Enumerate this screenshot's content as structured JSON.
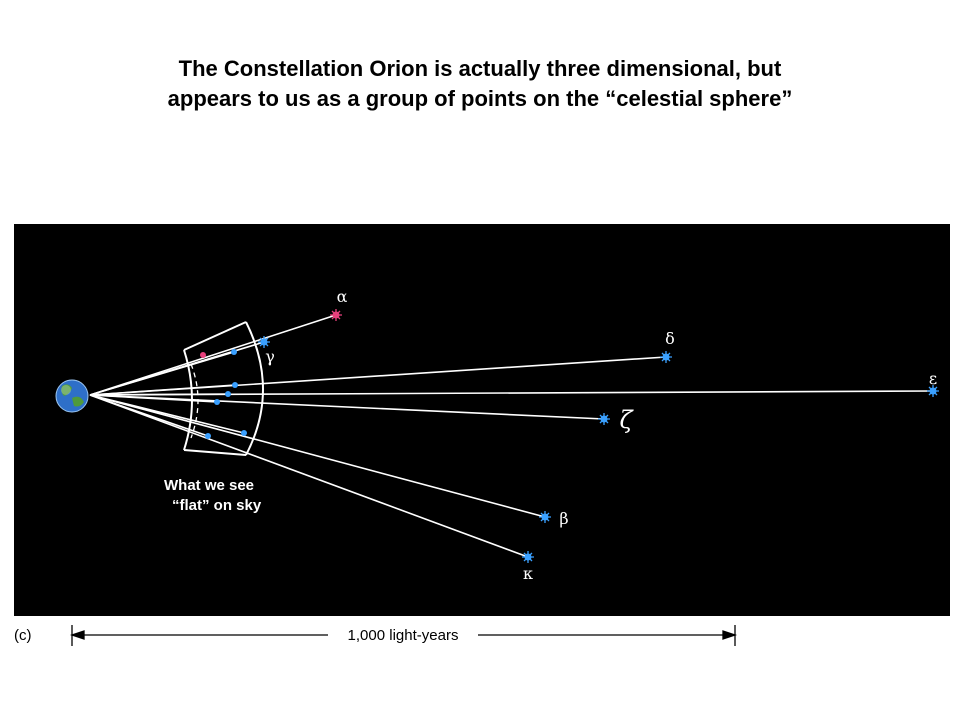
{
  "title": {
    "line1": "The Constellation Orion is actually three dimensional, but",
    "line2": "appears to us as a group of points on the “celestial sphere”"
  },
  "diagram": {
    "caption_line1": "What we see",
    "caption_line2": "“flat” on sky",
    "panel_label": "(c)",
    "scale_label": "1,000 light-years",
    "stars": [
      {
        "id": "alpha",
        "label": "α",
        "color": "#e8407c"
      },
      {
        "id": "gamma",
        "label": "γ",
        "color": "#3aa0ff"
      },
      {
        "id": "delta",
        "label": "δ",
        "color": "#3aa0ff"
      },
      {
        "id": "epsilon",
        "label": "ε",
        "color": "#3aa0ff"
      },
      {
        "id": "zeta",
        "label": "ζ",
        "color": "#3aa0ff"
      },
      {
        "id": "beta",
        "label": "β",
        "color": "#3aa0ff"
      },
      {
        "id": "kappa",
        "label": "κ",
        "color": "#3aa0ff"
      }
    ],
    "colors": {
      "background": "#000000",
      "lines": "#ffffff",
      "star_blue": "#3aa0ff",
      "star_pink": "#e8407c"
    }
  }
}
